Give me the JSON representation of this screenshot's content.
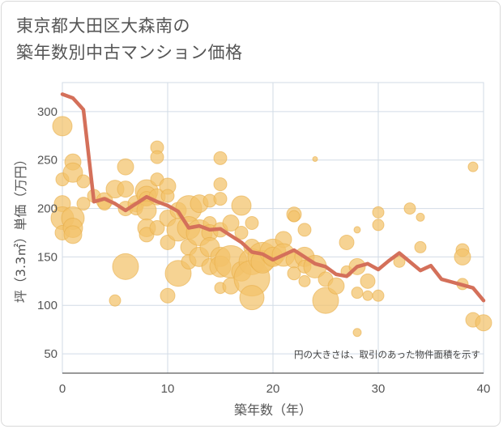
{
  "title": {
    "line1": "東京都大田区大森南の",
    "line2": "築年数別中古マンション価格"
  },
  "colors": {
    "bubble": "#f3c26a",
    "bubble_stroke": "#e8ad48",
    "line": "#d4705a",
    "grid": "#d2dbe6",
    "axis_text": "#555555"
  },
  "chart_data": {
    "type": "scatter",
    "title": "東京都大田区大森南の築年数別中古マンション価格",
    "xlabel": "築年数（年）",
    "ylabel": "坪（3.3㎡）単価（万円）",
    "xlim": [
      0,
      40
    ],
    "ylim": [
      30,
      330
    ],
    "xticks": [
      0,
      10,
      20,
      30,
      40
    ],
    "yticks": [
      50,
      100,
      150,
      200,
      250,
      300
    ],
    "grid": true,
    "annotation": "円の大きさは、取引のあった物件面積を示す",
    "bubble_series": {
      "points": [
        [
          0,
          285,
          12
        ],
        [
          0,
          230,
          8
        ],
        [
          0,
          205,
          10
        ],
        [
          0,
          190,
          14
        ],
        [
          0,
          175,
          9
        ],
        [
          1,
          248,
          10
        ],
        [
          1,
          237,
          12
        ],
        [
          1,
          190,
          14
        ],
        [
          1,
          180,
          12
        ],
        [
          1,
          173,
          11
        ],
        [
          2,
          228,
          8
        ],
        [
          2,
          205,
          8
        ],
        [
          3,
          213,
          8
        ],
        [
          4,
          208,
          10
        ],
        [
          4,
          205,
          8
        ],
        [
          5,
          220,
          11
        ],
        [
          5,
          105,
          7
        ],
        [
          6,
          243,
          10
        ],
        [
          6,
          220,
          10
        ],
        [
          6,
          200,
          9
        ],
        [
          6,
          140,
          16
        ],
        [
          7,
          205,
          10
        ],
        [
          7,
          200,
          8
        ],
        [
          8,
          218,
          14
        ],
        [
          8,
          213,
          12
        ],
        [
          8,
          210,
          9
        ],
        [
          8,
          198,
          12
        ],
        [
          8,
          180,
          11
        ],
        [
          8,
          173,
          9
        ],
        [
          9,
          263,
          8
        ],
        [
          9,
          253,
          8
        ],
        [
          9,
          230,
          8
        ],
        [
          9,
          212,
          10
        ],
        [
          9,
          180,
          9
        ],
        [
          10,
          223,
          10
        ],
        [
          10,
          213,
          8
        ],
        [
          10,
          190,
          10
        ],
        [
          10,
          165,
          9
        ],
        [
          10,
          110,
          9
        ],
        [
          11,
          198,
          10
        ],
        [
          11,
          178,
          14
        ],
        [
          11,
          133,
          16
        ],
        [
          12,
          200,
          16
        ],
        [
          12,
          180,
          14
        ],
        [
          12,
          160,
          10
        ],
        [
          12,
          145,
          9
        ],
        [
          13,
          205,
          11
        ],
        [
          13,
          175,
          16
        ],
        [
          13,
          150,
          12
        ],
        [
          14,
          208,
          8
        ],
        [
          14,
          185,
          8
        ],
        [
          14,
          175,
          10
        ],
        [
          14,
          160,
          12
        ],
        [
          14,
          140,
          10
        ],
        [
          15,
          252,
          8
        ],
        [
          15,
          225,
          8
        ],
        [
          15,
          210,
          8
        ],
        [
          15,
          178,
          9
        ],
        [
          15,
          150,
          12
        ],
        [
          15,
          140,
          13
        ],
        [
          15,
          118,
          7
        ],
        [
          16,
          185,
          10
        ],
        [
          16,
          145,
          20
        ],
        [
          16,
          120,
          10
        ],
        [
          17,
          203,
          12
        ],
        [
          17,
          175,
          8
        ],
        [
          17,
          135,
          12
        ],
        [
          18,
          185,
          8
        ],
        [
          18,
          160,
          10
        ],
        [
          18,
          145,
          16
        ],
        [
          18,
          128,
          22
        ],
        [
          18,
          108,
          15
        ],
        [
          19,
          150,
          18
        ],
        [
          19,
          145,
          14
        ],
        [
          20,
          155,
          16
        ],
        [
          20,
          150,
          12
        ],
        [
          21,
          168,
          10
        ],
        [
          21,
          152,
          14
        ],
        [
          22,
          194,
          9
        ],
        [
          22,
          192,
          7
        ],
        [
          22,
          147,
          10
        ],
        [
          22,
          133,
          8
        ],
        [
          23,
          178,
          8
        ],
        [
          23,
          150,
          12
        ],
        [
          23,
          140,
          8
        ],
        [
          23,
          125,
          7
        ],
        [
          24,
          251,
          3
        ],
        [
          24,
          140,
          14
        ],
        [
          25,
          105,
          16
        ],
        [
          25,
          127,
          9
        ],
        [
          26,
          120,
          10
        ],
        [
          27,
          165,
          9
        ],
        [
          27,
          135,
          7
        ],
        [
          28,
          178,
          4
        ],
        [
          28,
          140,
          10
        ],
        [
          28,
          113,
          7
        ],
        [
          28,
          72,
          5
        ],
        [
          29,
          125,
          9
        ],
        [
          29,
          110,
          6
        ],
        [
          30,
          196,
          7
        ],
        [
          30,
          183,
          7
        ],
        [
          30,
          110,
          7
        ],
        [
          32,
          145,
          7
        ],
        [
          33,
          200,
          7
        ],
        [
          34,
          191,
          5
        ],
        [
          34,
          160,
          7
        ],
        [
          38,
          157,
          8
        ],
        [
          38,
          150,
          10
        ],
        [
          38,
          122,
          7
        ],
        [
          39,
          243,
          6
        ],
        [
          39,
          85,
          9
        ],
        [
          40,
          82,
          10
        ]
      ]
    },
    "series": [
      {
        "type": "line",
        "x": [
          0,
          1,
          2,
          3,
          4,
          5,
          6,
          7,
          8,
          9,
          10,
          11,
          12,
          13,
          14,
          15,
          16,
          17,
          18,
          19,
          20,
          21,
          22,
          23,
          24,
          25,
          26,
          27,
          28,
          29,
          30,
          31,
          32,
          33,
          34,
          35,
          36,
          37,
          38,
          39,
          40
        ],
        "values": [
          318,
          314,
          302,
          207,
          210,
          205,
          198,
          205,
          212,
          207,
          203,
          197,
          180,
          182,
          178,
          179,
          172,
          165,
          155,
          153,
          147,
          152,
          157,
          150,
          143,
          140,
          132,
          130,
          140,
          143,
          137,
          146,
          154,
          145,
          136,
          141,
          127,
          124,
          121,
          118,
          105
        ]
      }
    ]
  }
}
